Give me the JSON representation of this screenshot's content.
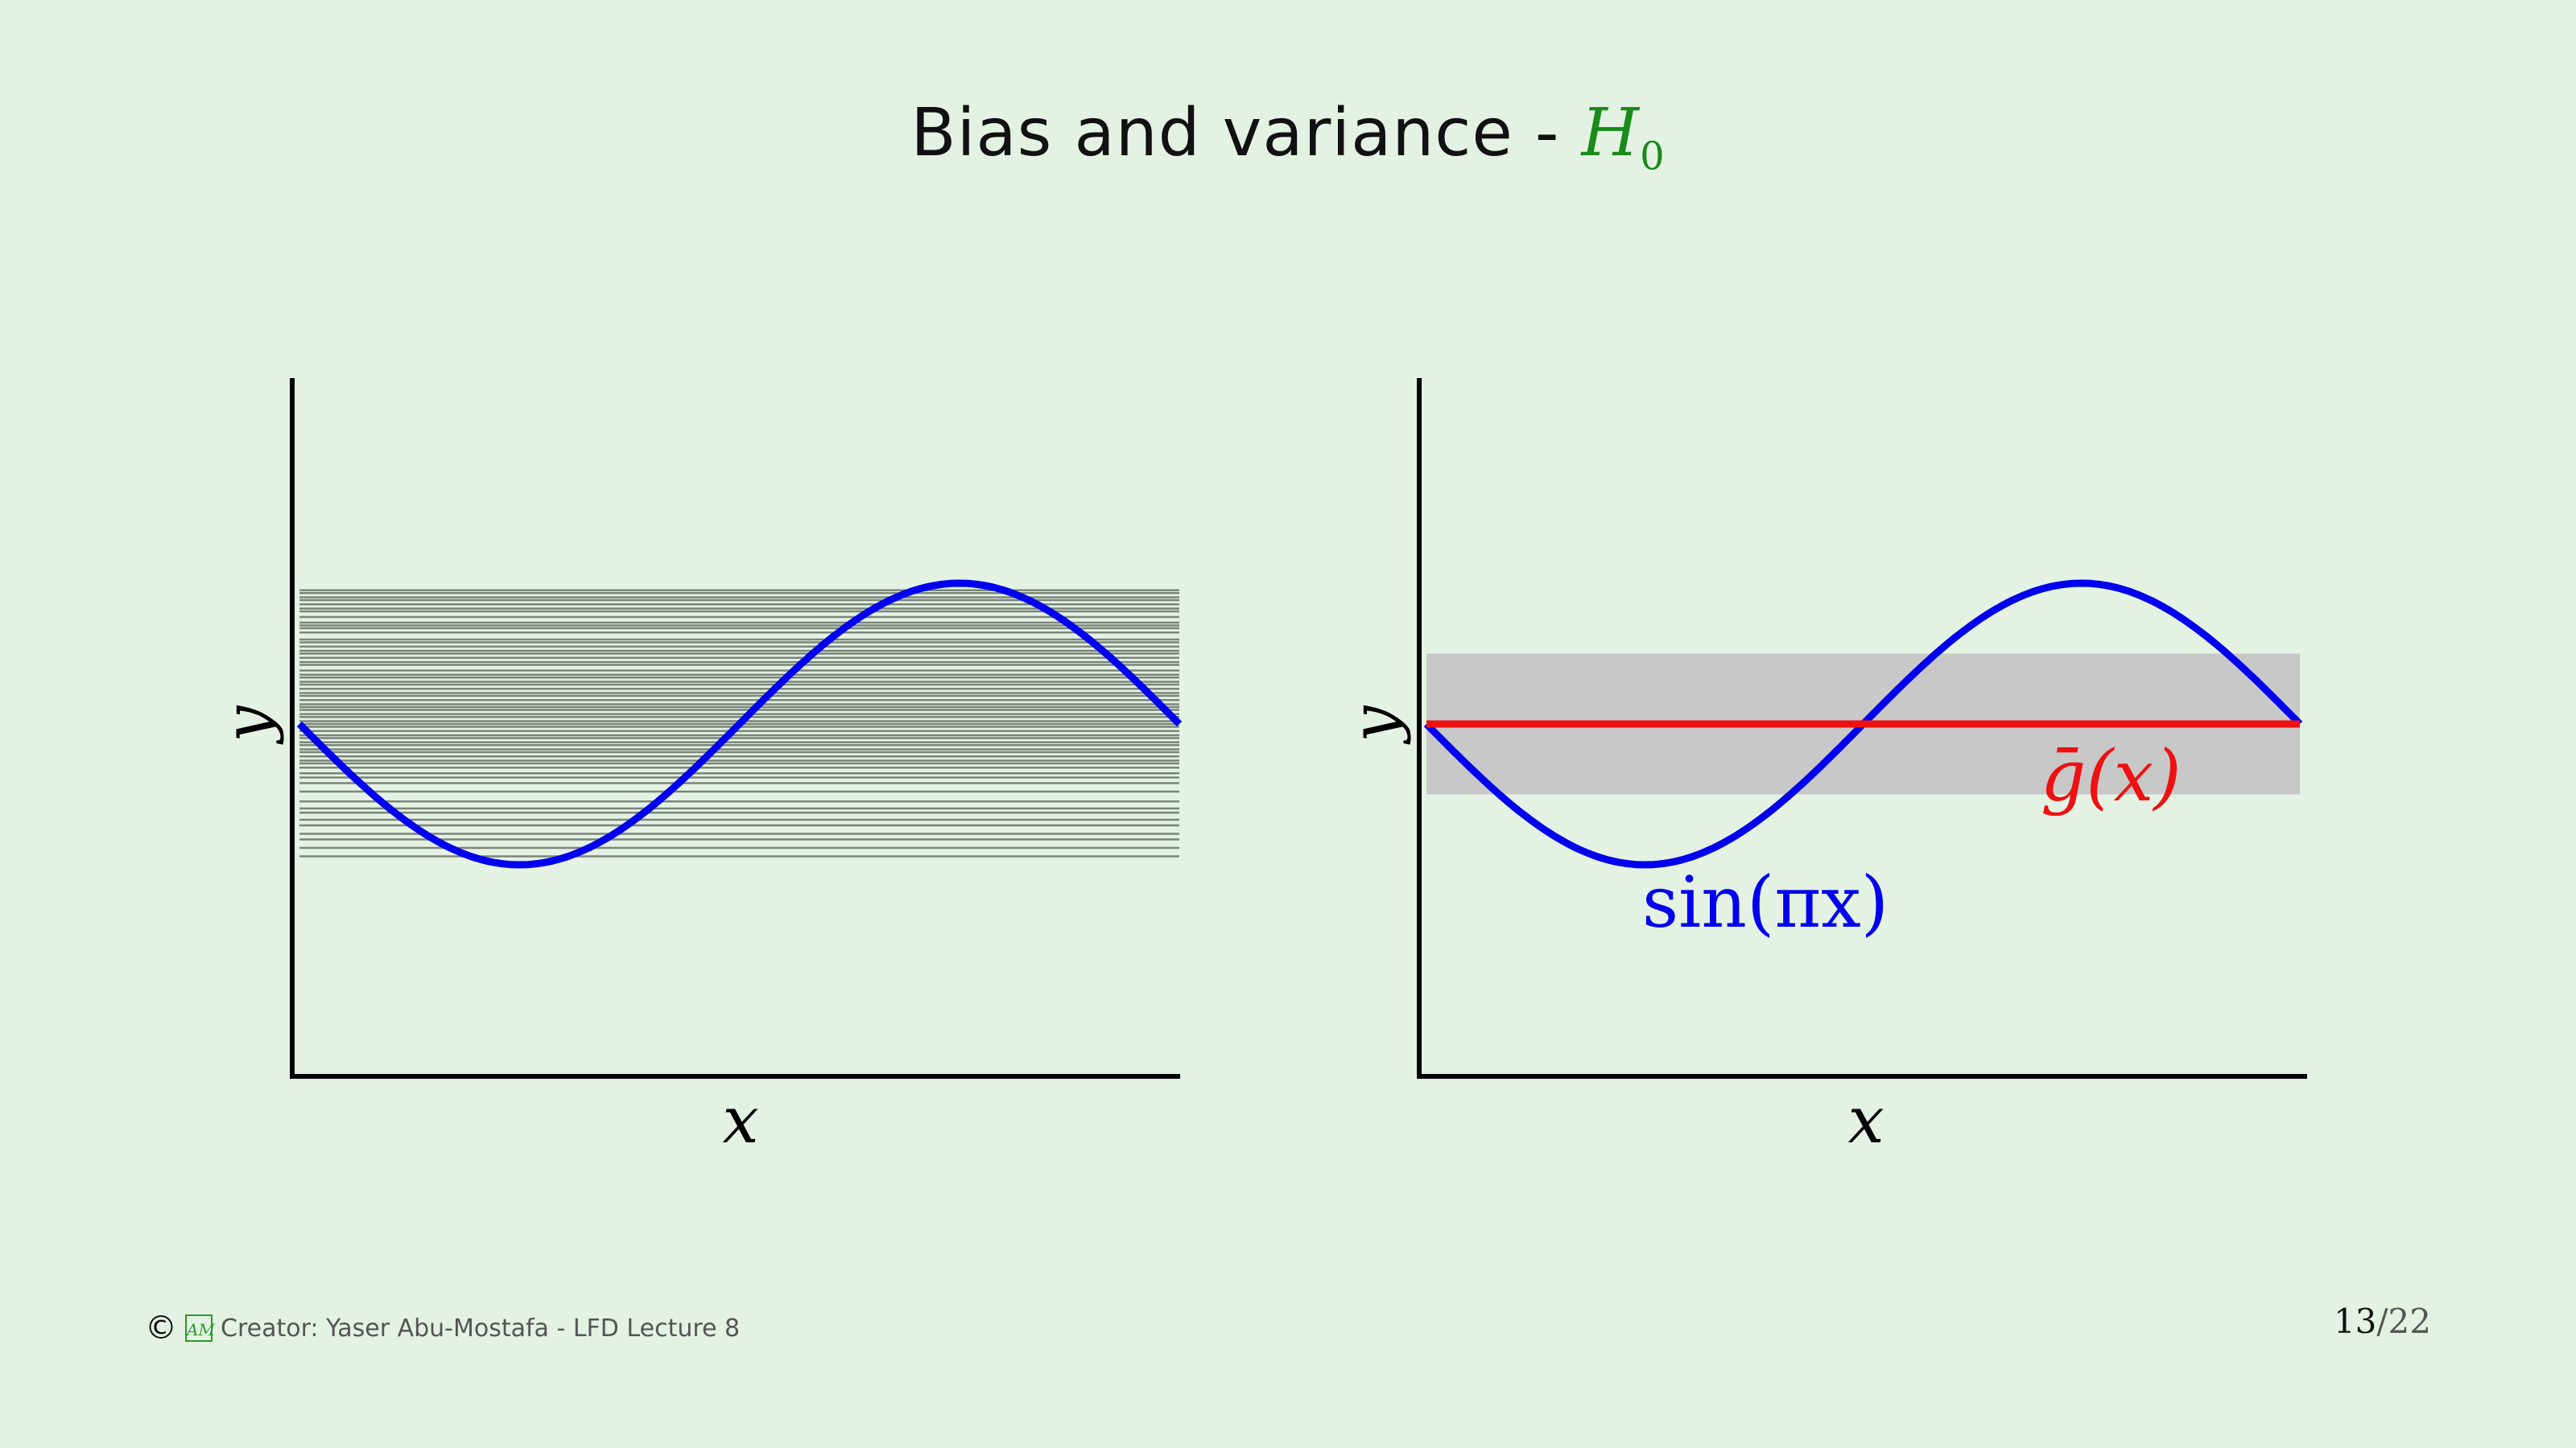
{
  "title": {
    "text": "Bias and variance - ",
    "hypothesis": "H",
    "hypothesis_sub": "0"
  },
  "footer": {
    "copyright_symbol": "©",
    "logo_text": "AM",
    "credit": "Creator: Yaser Abu-Mostafa - LFD Lecture 8"
  },
  "page": {
    "current": "13",
    "separator": "/",
    "total": "22"
  },
  "colors": {
    "background": "#e4f2e4",
    "target_curve": "#0000ee",
    "average_hypothesis": "#ee1111",
    "hypothesis_lines": "#556055",
    "variance_band": "#c8c8c8",
    "title_accent": "#1a8a1a"
  },
  "chart_data": [
    {
      "type": "line",
      "xlabel": "x",
      "ylabel": "y",
      "xlim": [
        -1,
        1
      ],
      "ylim": [
        -2,
        1.4
      ],
      "series": [
        {
          "function": "sin(pi*x)",
          "color": "#0000ee"
        }
      ],
      "horizontal_lines": [
        0.95,
        0.93,
        0.9,
        0.88,
        0.85,
        0.82,
        0.8,
        0.76,
        0.72,
        0.7,
        0.68,
        0.65,
        0.6,
        0.58,
        0.55,
        0.52,
        0.5,
        0.47,
        0.44,
        0.42,
        0.38,
        0.35,
        0.33,
        0.3,
        0.28,
        0.25,
        0.22,
        0.2,
        0.17,
        0.14,
        0.12,
        0.1,
        0.07,
        0.05,
        0.02,
        0.0,
        -0.02,
        -0.05,
        -0.08,
        -0.1,
        -0.13,
        -0.15,
        -0.18,
        -0.2,
        -0.23,
        -0.26,
        -0.28,
        -0.31,
        -0.35,
        -0.38,
        -0.42,
        -0.48,
        -0.55,
        -0.6,
        -0.63,
        -0.68,
        -0.72,
        -0.78,
        -0.82,
        -0.88,
        -0.94
      ]
    },
    {
      "type": "line",
      "xlabel": "x",
      "ylabel": "y",
      "xlim": [
        -1,
        1
      ],
      "ylim": [
        -2,
        1.4
      ],
      "series": [
        {
          "function": "sin(pi*x)",
          "label": "sin(πx)",
          "color": "#0000ee"
        },
        {
          "value": 0,
          "label": "ḡ(x)",
          "color": "#ee1111"
        }
      ],
      "band": {
        "low": -0.5,
        "high": 0.5,
        "color": "#c8c8c8"
      }
    }
  ]
}
